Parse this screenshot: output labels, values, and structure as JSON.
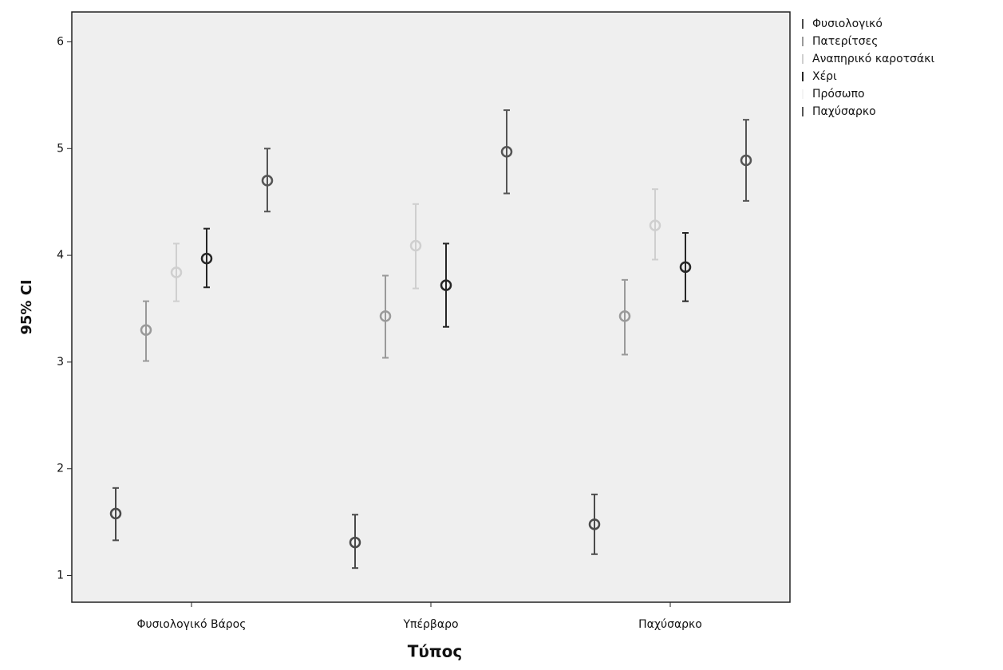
{
  "chart_data": {
    "type": "errorbar",
    "x_label": "Τύπος",
    "y_label": "95% CI",
    "categories": [
      "Φυσιολογικό Βάρος",
      "Υπέρβαρο",
      "Παχύσαρκο"
    ],
    "series": [
      {
        "name": "Φυσιολογικό",
        "color": "#4a4a4a",
        "values": [
          1.58,
          1.31,
          1.48
        ],
        "lower": [
          1.33,
          1.07,
          1.2
        ],
        "upper": [
          1.82,
          1.57,
          1.76
        ]
      },
      {
        "name": "Πατερίτσες",
        "color": "#9a9a9a",
        "values": [
          3.3,
          3.43,
          3.43
        ],
        "lower": [
          3.01,
          3.04,
          3.07
        ],
        "upper": [
          3.57,
          3.81,
          3.77
        ]
      },
      {
        "name": "Αναπηρικό καροτσάκι",
        "color": "#cfcfcf",
        "values": [
          3.84,
          4.09,
          4.28
        ],
        "lower": [
          3.57,
          3.69,
          3.96
        ],
        "upper": [
          4.11,
          4.48,
          4.62
        ]
      },
      {
        "name": "Χέρι",
        "color": "#262626",
        "values": [
          3.97,
          3.72,
          3.89
        ],
        "lower": [
          3.7,
          3.33,
          3.57
        ],
        "upper": [
          4.25,
          4.11,
          4.21
        ]
      },
      {
        "name": "Πρόσωπο",
        "color": "#f4f4f4",
        "values": [
          null,
          null,
          null
        ],
        "lower": [
          null,
          null,
          null
        ],
        "upper": [
          null,
          null,
          null
        ]
      },
      {
        "name": "Παχύσαρκο",
        "color": "#555555",
        "values": [
          4.7,
          4.97,
          4.89
        ],
        "lower": [
          4.41,
          4.58,
          4.51
        ],
        "upper": [
          5.0,
          5.36,
          5.27
        ]
      }
    ],
    "ylim": [
      0.75,
      6.28
    ],
    "yticks": [
      1,
      2,
      3,
      4,
      5,
      6
    ],
    "legend": "outside-right"
  }
}
